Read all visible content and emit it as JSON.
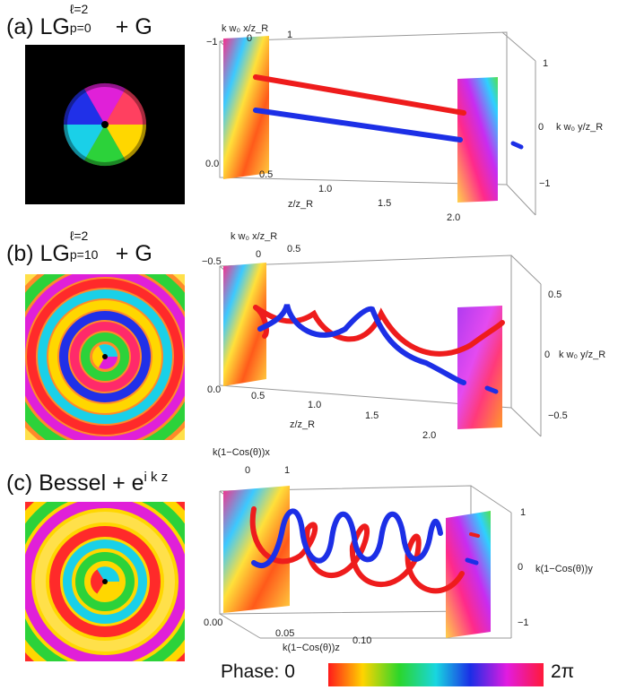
{
  "figure": {
    "phase_legend": {
      "label": "Phase: 0",
      "end_label": "2π"
    },
    "panels": [
      {
        "id": "a",
        "title_prefix": "(a) LG",
        "title_super": "ℓ=2",
        "title_sub": "p=0",
        "title_suffix": " + G",
        "x_axis_label": "k w₀ x/z_R",
        "x_ticks": [
          "−1",
          "0",
          "1"
        ],
        "y_axis_label": "k w₀ y/z_R",
        "y_ticks": [
          "1",
          "0",
          "−1"
        ],
        "z_axis_label": "z/z_R",
        "z_ticks": [
          "0.0",
          "0.5",
          "1.0",
          "1.5",
          "2.0"
        ],
        "trajectory_colors": [
          "#ee1c1c",
          "#1c2fe6"
        ]
      },
      {
        "id": "b",
        "title_prefix": "(b) LG",
        "title_super": "ℓ=2",
        "title_sub": "p=10",
        "title_suffix": " + G",
        "x_axis_label": "k w₀ x/z_R",
        "x_ticks": [
          "−0.5",
          "0",
          "0.5"
        ],
        "y_axis_label": "k w₀ y/z_R",
        "y_ticks": [
          "0.5",
          "0",
          "−0.5"
        ],
        "z_axis_label": "z/z_R",
        "z_ticks": [
          "0.0",
          "0.5",
          "1.0",
          "1.5",
          "2.0"
        ],
        "trajectory_colors": [
          "#ee1c1c",
          "#1c2fe6"
        ]
      },
      {
        "id": "c",
        "title_prefix": "(c) Bessel + e",
        "title_super": "i k z",
        "title_sub": "",
        "title_suffix": "",
        "x_axis_label": "k(1−Cos(θ))x",
        "x_ticks": [
          "0",
          "1"
        ],
        "y_axis_label": "k(1−Cos(θ))y",
        "y_ticks": [
          "1",
          "0",
          "−1"
        ],
        "z_axis_label": "k(1−Cos(θ))z",
        "z_ticks": [
          "0.00",
          "0.05",
          "0.10"
        ],
        "trajectory_colors": [
          "#ee1c1c",
          "#1c2fe6"
        ]
      }
    ]
  }
}
